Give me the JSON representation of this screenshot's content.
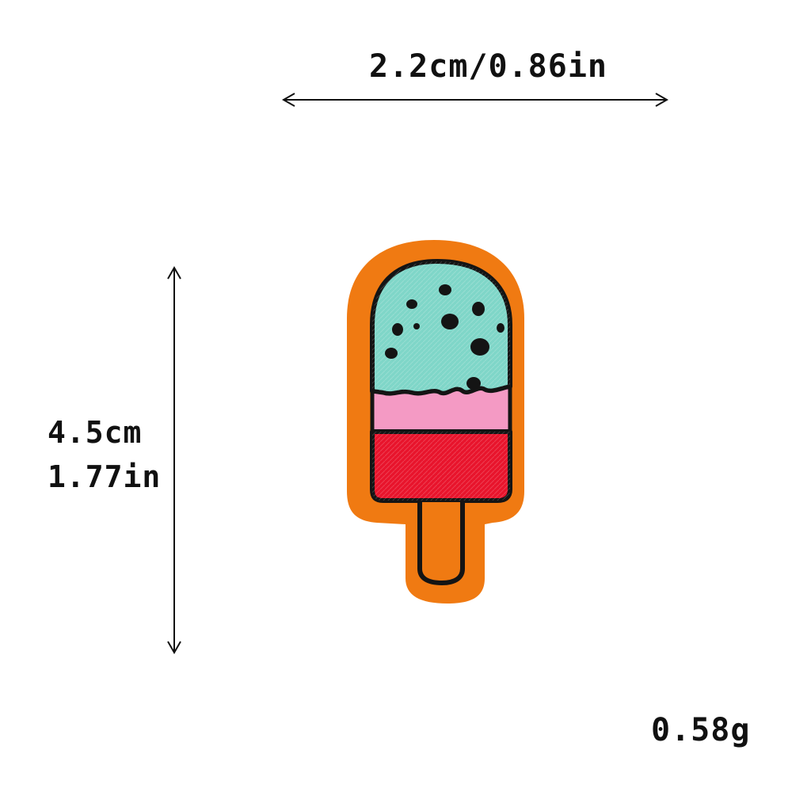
{
  "dimensions": {
    "width_text": "2.2cm/0.86in",
    "height_cm_text": "4.5cm",
    "height_in_text": "1.77in",
    "weight_text": "0.58g"
  },
  "product": {
    "name_icon": "popsicle-patch",
    "colors": {
      "border": "#f07a12",
      "outline": "#141414",
      "mint": "#7fd6c8",
      "pink": "#f49ac4",
      "red": "#e8142c",
      "stick": "#f07a12"
    }
  }
}
